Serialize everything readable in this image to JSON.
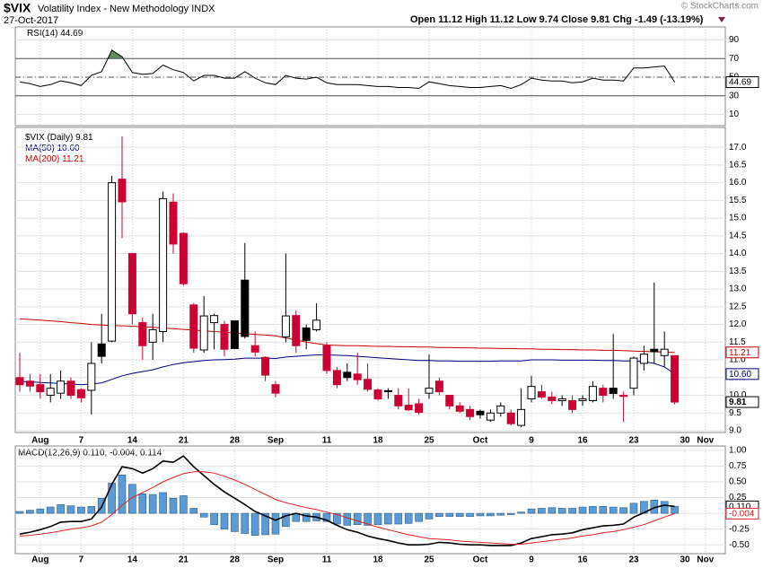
{
  "header": {
    "symbol": "$VIX",
    "name": "Volatility Index - New Methodology INDX",
    "date": "27-Oct-2017",
    "quote": "Open 11.12 High 11.12 Low 9.74 Close 9.81 Chg -1.49 (-13.19%)",
    "credit": "© StockCharts.com"
  },
  "chart_data": [
    {
      "type": "line",
      "series": [
        {
          "name": "RSI(14)",
          "color": "#000000",
          "last_label": "44.69",
          "values": [
            45,
            43,
            40,
            42,
            46,
            44,
            41,
            52,
            56,
            79,
            72,
            55,
            53,
            54,
            63,
            58,
            55,
            46,
            52,
            52,
            49,
            49,
            56,
            49,
            44,
            42,
            52,
            49,
            48,
            50,
            44,
            42,
            42,
            42,
            41,
            40,
            40,
            39,
            39,
            38,
            45,
            43,
            41,
            40,
            39,
            39,
            40,
            41,
            38,
            42,
            49,
            47,
            46,
            46,
            44,
            45,
            49,
            47,
            47,
            46,
            60,
            60,
            61,
            62,
            44.69
          ]
        }
      ],
      "ylim": [
        -2,
        104
      ],
      "yticks": [
        10,
        30,
        50,
        70,
        90
      ],
      "solid_lines": [
        30,
        70
      ],
      "dashed_lines": [
        50
      ],
      "fill_above": 70,
      "fill_color": "#5f8f5f",
      "grid": true
    },
    {
      "type": "candlestick",
      "name": "$VIX (Daily)",
      "close_label": "9.81",
      "categories": [
        "2017-07-28",
        "2017-07-31",
        "2017-08-01",
        "2017-08-02",
        "2017-08-03",
        "2017-08-04",
        "2017-08-07",
        "2017-08-08",
        "2017-08-09",
        "2017-08-10",
        "2017-08-11",
        "2017-08-14",
        "2017-08-15",
        "2017-08-16",
        "2017-08-17",
        "2017-08-18",
        "2017-08-21",
        "2017-08-22",
        "2017-08-23",
        "2017-08-24",
        "2017-08-25",
        "2017-08-28",
        "2017-08-29",
        "2017-08-30",
        "2017-08-31",
        "2017-09-01",
        "2017-09-05",
        "2017-09-06",
        "2017-09-07",
        "2017-09-08",
        "2017-09-11",
        "2017-09-12",
        "2017-09-13",
        "2017-09-14",
        "2017-09-15",
        "2017-09-18",
        "2017-09-19",
        "2017-09-20",
        "2017-09-21",
        "2017-09-22",
        "2017-09-25",
        "2017-09-26",
        "2017-09-27",
        "2017-09-28",
        "2017-09-29",
        "2017-10-02",
        "2017-10-03",
        "2017-10-04",
        "2017-10-05",
        "2017-10-06",
        "2017-10-09",
        "2017-10-10",
        "2017-10-11",
        "2017-10-12",
        "2017-10-13",
        "2017-10-16",
        "2017-10-17",
        "2017-10-18",
        "2017-10-19",
        "2017-10-20",
        "2017-10-23",
        "2017-10-24",
        "2017-10-25",
        "2017-10-26",
        "2017-10-27"
      ],
      "open": [
        10.5,
        10.4,
        10.3,
        10.0,
        10.06,
        10.4,
        10.16,
        10.14,
        11.45,
        11.53,
        16.1,
        14.0,
        12.05,
        11.5,
        11.8,
        15.45,
        14.57,
        12.55,
        11.28,
        12.05,
        12.0,
        12.1,
        13.25,
        11.4,
        11.07,
        10.3,
        11.65,
        12.25,
        11.9,
        11.85,
        11.4,
        10.7,
        10.65,
        10.6,
        10.45,
        10.15,
        10.12,
        10.0,
        9.72,
        9.76,
        10.06,
        10.4,
        10.0,
        9.7,
        9.6,
        9.55,
        9.3,
        9.5,
        9.5,
        9.15,
        9.9,
        10.1,
        9.95,
        9.85,
        9.85,
        9.85,
        9.85,
        10.2,
        10.2,
        10.0,
        10.2,
        10.9,
        11.3,
        11.12,
        11.12
      ],
      "high": [
        11.2,
        10.6,
        10.6,
        10.6,
        10.7,
        10.5,
        10.2,
        11.5,
        12.3,
        16.2,
        17.3,
        14.0,
        12.2,
        12.3,
        15.75,
        15.7,
        14.6,
        12.6,
        12.8,
        12.3,
        12.1,
        12.1,
        14.3,
        11.8,
        11.1,
        10.4,
        14.0,
        12.4,
        12.0,
        12.6,
        11.5,
        10.8,
        10.9,
        11.2,
        10.9,
        10.2,
        10.2,
        10.2,
        10.2,
        9.9,
        11.15,
        10.5,
        10.0,
        9.8,
        9.7,
        9.6,
        9.6,
        9.8,
        9.6,
        10.2,
        10.55,
        10.3,
        10.1,
        10.0,
        10.0,
        10.0,
        10.4,
        10.3,
        11.73,
        10.1,
        11.1,
        11.4,
        13.18,
        11.8,
        11.12
      ],
      "low": [
        10.1,
        10.1,
        9.9,
        9.8,
        9.9,
        9.9,
        9.8,
        9.46,
        10.9,
        11.5,
        14.44,
        12.0,
        11.0,
        11.0,
        11.5,
        14.0,
        13.1,
        11.2,
        11.2,
        11.3,
        11.1,
        11.3,
        11.6,
        11.1,
        10.4,
        9.95,
        11.5,
        11.2,
        11.3,
        11.8,
        10.6,
        10.2,
        10.4,
        10.3,
        10.1,
        9.85,
        9.9,
        9.6,
        9.55,
        9.45,
        9.9,
        10.0,
        9.6,
        9.5,
        9.3,
        9.35,
        9.25,
        9.4,
        9.15,
        9.1,
        9.8,
        9.9,
        9.75,
        9.7,
        9.5,
        9.7,
        9.8,
        9.8,
        9.9,
        9.25,
        10.0,
        10.7,
        10.9,
        10.8,
        9.74
      ],
      "close": [
        10.3,
        10.26,
        10.1,
        10.2,
        10.4,
        10.0,
        9.93,
        10.9,
        11.1,
        16.0,
        15.46,
        12.3,
        11.4,
        11.85,
        15.55,
        14.27,
        13.15,
        11.33,
        12.24,
        12.25,
        11.3,
        11.32,
        11.66,
        11.22,
        10.57,
        10.06,
        12.24,
        11.4,
        11.55,
        12.12,
        10.7,
        10.3,
        10.5,
        10.44,
        10.17,
        9.9,
        10.13,
        9.7,
        9.59,
        9.52,
        10.2,
        10.1,
        9.7,
        9.55,
        9.4,
        9.45,
        9.5,
        9.7,
        9.2,
        9.6,
        10.25,
        9.95,
        9.85,
        9.9,
        9.6,
        9.9,
        10.25,
        10.0,
        10.05,
        9.97,
        11.05,
        11.16,
        11.23,
        11.3,
        9.81
      ],
      "up_color": "#000000",
      "down_color": "#cc0033",
      "series": [
        {
          "name": "MA(50)",
          "color": "#000080",
          "last_label": "10.60",
          "values": [
            10.39,
            10.38,
            10.36,
            10.35,
            10.33,
            10.32,
            10.3,
            10.32,
            10.35,
            10.45,
            10.55,
            10.62,
            10.67,
            10.72,
            10.8,
            10.87,
            10.92,
            10.95,
            10.98,
            11.0,
            11.01,
            11.02,
            11.05,
            11.05,
            11.05,
            11.04,
            11.08,
            11.1,
            11.12,
            11.14,
            11.14,
            11.13,
            11.12,
            11.1,
            11.08,
            11.06,
            11.04,
            11.02,
            11.0,
            10.98,
            10.98,
            10.97,
            10.97,
            10.96,
            10.96,
            10.96,
            10.96,
            10.97,
            10.97,
            10.97,
            11.0,
            11.0,
            11.0,
            10.99,
            10.99,
            10.99,
            10.99,
            10.98,
            10.98,
            10.97,
            10.97,
            10.95,
            10.9,
            10.8,
            10.6
          ]
        },
        {
          "name": "MA(200)",
          "color": "#cc0000",
          "last_label": "11.21",
          "values": [
            12.16,
            12.14,
            12.12,
            12.1,
            12.08,
            12.05,
            12.03,
            12.0,
            11.98,
            11.97,
            11.96,
            11.95,
            11.93,
            11.92,
            11.9,
            11.88,
            11.86,
            11.84,
            11.82,
            11.8,
            11.78,
            11.76,
            11.74,
            11.72,
            11.7,
            11.68,
            11.62,
            11.56,
            11.5,
            11.46,
            11.42,
            11.41,
            11.4,
            11.4,
            11.39,
            11.38,
            11.38,
            11.37,
            11.37,
            11.36,
            11.36,
            11.35,
            11.35,
            11.34,
            11.34,
            11.33,
            11.33,
            11.32,
            11.32,
            11.31,
            11.31,
            11.3,
            11.3,
            11.29,
            11.29,
            11.28,
            11.28,
            11.27,
            11.27,
            11.26,
            11.25,
            11.24,
            11.23,
            11.22,
            11.21
          ]
        }
      ],
      "xticks": [
        {
          "value": "2017-08-01",
          "label": "Aug"
        },
        {
          "value": "2017-08-07",
          "label": "7"
        },
        {
          "value": "2017-08-14",
          "label": "14"
        },
        {
          "value": "2017-08-21",
          "label": "21"
        },
        {
          "value": "2017-08-28",
          "label": "28"
        },
        {
          "value": "2017-09-01",
          "label": "Sep"
        },
        {
          "value": "2017-09-11",
          "label": "11"
        },
        {
          "value": "2017-09-18",
          "label": "18"
        },
        {
          "value": "2017-09-25",
          "label": "25"
        },
        {
          "value": "2017-10-02",
          "label": "Oct"
        },
        {
          "value": "2017-10-09",
          "label": "9"
        },
        {
          "value": "2017-10-16",
          "label": "16"
        },
        {
          "value": "2017-10-23",
          "label": "23"
        },
        {
          "value": "2017-10-30",
          "label": "30"
        },
        {
          "value": "2017-11-01",
          "label": "Nov"
        }
      ],
      "ylim": [
        8.95,
        17.56
      ],
      "yticks": [
        {
          "value": 9,
          "label": "9.0"
        },
        9.5,
        {
          "value": 10,
          "label": "10.0"
        },
        10.5,
        {
          "value": 11,
          "label": "11.0"
        },
        11.5,
        {
          "value": 12,
          "label": "12.0"
        },
        12.5,
        {
          "value": 13,
          "label": "13.0"
        },
        13.5,
        {
          "value": 14,
          "label": "14.0"
        },
        14.5,
        {
          "value": 15,
          "label": "15.0"
        },
        15.5,
        {
          "value": 16,
          "label": "16.0"
        },
        16.5,
        {
          "value": 17,
          "label": "17.0"
        }
      ],
      "grid": true
    },
    {
      "type": "macd",
      "legend": "MACD(12,26,9) 0.110, -0.004, 0.114",
      "series": [
        {
          "kind": "bar",
          "color": "#5b9bd5",
          "values": [
            0.03,
            0.05,
            0.07,
            0.1,
            0.14,
            0.12,
            0.1,
            0.11,
            0.24,
            0.48,
            0.61,
            0.46,
            0.31,
            0.3,
            0.33,
            0.24,
            0.28,
            0.08,
            -0.06,
            -0.18,
            -0.25,
            -0.29,
            -0.32,
            -0.35,
            -0.34,
            -0.33,
            -0.21,
            -0.13,
            -0.13,
            -0.12,
            -0.13,
            -0.17,
            -0.19,
            -0.18,
            -0.19,
            -0.18,
            -0.17,
            -0.17,
            -0.16,
            -0.13,
            -0.09,
            -0.05,
            -0.05,
            -0.05,
            -0.05,
            -0.04,
            -0.04,
            -0.03,
            -0.02,
            0.02,
            0.07,
            0.08,
            0.09,
            0.08,
            0.08,
            0.1,
            0.11,
            0.11,
            0.1,
            0.09,
            0.16,
            0.19,
            0.21,
            0.19,
            0.114
          ]
        },
        {
          "kind": "line",
          "color": "#000000",
          "last_label": "0.110",
          "values": [
            -0.33,
            -0.3,
            -0.26,
            -0.21,
            -0.14,
            -0.13,
            -0.13,
            -0.09,
            0.1,
            0.46,
            0.74,
            0.71,
            0.64,
            0.71,
            0.83,
            0.81,
            0.91,
            0.74,
            0.6,
            0.46,
            0.34,
            0.24,
            0.14,
            0.03,
            -0.04,
            -0.11,
            -0.04,
            0,
            -0.04,
            -0.06,
            -0.11,
            -0.19,
            -0.26,
            -0.3,
            -0.36,
            -0.4,
            -0.43,
            -0.47,
            -0.5,
            -0.5,
            -0.49,
            -0.46,
            -0.47,
            -0.49,
            -0.5,
            -0.5,
            -0.51,
            -0.51,
            -0.51,
            -0.47,
            -0.4,
            -0.37,
            -0.34,
            -0.33,
            -0.31,
            -0.26,
            -0.23,
            -0.2,
            -0.19,
            -0.17,
            -0.06,
            0.01,
            0.09,
            0.13,
            0.11
          ]
        },
        {
          "kind": "line",
          "color": "#dd2222",
          "last_label": "-0.004",
          "values": [
            -0.36,
            -0.35,
            -0.33,
            -0.31,
            -0.28,
            -0.25,
            -0.23,
            -0.2,
            -0.14,
            -0.02,
            0.13,
            0.25,
            0.33,
            0.41,
            0.5,
            0.57,
            0.63,
            0.66,
            0.66,
            0.64,
            0.59,
            0.53,
            0.46,
            0.38,
            0.3,
            0.22,
            0.17,
            0.13,
            0.09,
            0.06,
            0.02,
            -0.02,
            -0.07,
            -0.12,
            -0.17,
            -0.22,
            -0.26,
            -0.3,
            -0.34,
            -0.37,
            -0.4,
            -0.41,
            -0.42,
            -0.44,
            -0.45,
            -0.46,
            -0.47,
            -0.48,
            -0.49,
            -0.49,
            -0.47,
            -0.45,
            -0.43,
            -0.41,
            -0.39,
            -0.36,
            -0.34,
            -0.31,
            -0.29,
            -0.26,
            -0.22,
            -0.18,
            -0.12,
            -0.06,
            -0.004
          ]
        }
      ],
      "ylim": [
        -0.64,
        1.07
      ],
      "yticks": [
        {
          "value": -0.5,
          "label": "-0.50"
        },
        {
          "value": -0.25,
          "label": "-0.25"
        },
        {
          "value": 0,
          "label": "0.00"
        },
        {
          "value": 0.25,
          "label": "0.25"
        },
        {
          "value": 0.5,
          "label": "0.50"
        },
        {
          "value": 0.75,
          "label": "0.75"
        },
        {
          "value": 1,
          "label": "1.00"
        }
      ],
      "grid": true
    }
  ]
}
